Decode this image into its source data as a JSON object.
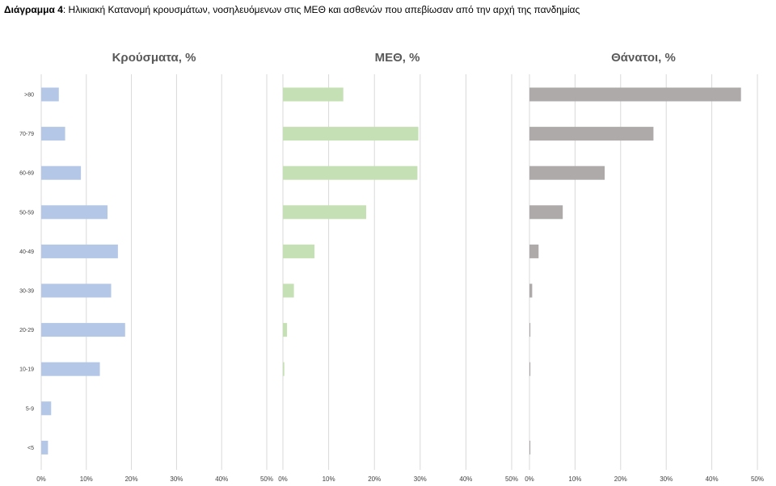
{
  "caption": {
    "prefix": "Διάγραμμα 4",
    "text": ": Ηλικιακή Κατανομή κρουσμάτων, νοσηλευόμενων στις ΜΕΘ και ασθενών που απεβίωσαν από την αρχή της πανδημίας"
  },
  "chart_data": [
    {
      "type": "bar",
      "orientation": "horizontal",
      "title": "Κρούσματα, %",
      "color": "#b4c7e7",
      "categories": [
        ">80",
        "70-79",
        "60-69",
        "50-59",
        "40-49",
        "30-39",
        "20-29",
        "10-19",
        "5-9",
        "<5"
      ],
      "values": [
        3.9,
        5.3,
        8.8,
        14.7,
        17.0,
        15.5,
        18.6,
        13.0,
        2.2,
        1.5
      ],
      "xlim": [
        0,
        50
      ],
      "xticks": [
        "0%",
        "10%",
        "20%",
        "30%",
        "40%",
        "50%"
      ],
      "grid": true
    },
    {
      "type": "bar",
      "orientation": "horizontal",
      "title": "ΜΕΘ, %",
      "color": "#c5e0b4",
      "categories": [
        ">80",
        "70-79",
        "60-69",
        "50-59",
        "40-49",
        "30-39",
        "20-29",
        "10-19",
        "5-9",
        "<5"
      ],
      "values": [
        13.2,
        29.6,
        29.4,
        18.2,
        6.9,
        2.4,
        0.9,
        0.3,
        0,
        0
      ],
      "xlim": [
        0,
        50
      ],
      "xticks": [
        "0%",
        "10%",
        "20%",
        "30%",
        "40%",
        "50%"
      ],
      "grid": true
    },
    {
      "type": "bar",
      "orientation": "horizontal",
      "title": "Θάνατοι, %",
      "color": "#aeaaaa",
      "categories": [
        ">80",
        "70-79",
        "60-69",
        "50-59",
        "40-49",
        "30-39",
        "20-29",
        "10-19",
        "5-9",
        "<5"
      ],
      "values": [
        46.4,
        27.2,
        16.5,
        7.3,
        2.0,
        0.6,
        0.2,
        0.2,
        0,
        0.2
      ],
      "xlim": [
        0,
        50
      ],
      "xticks": [
        "0%",
        "10%",
        "20%",
        "30%",
        "40%",
        "50%"
      ],
      "grid": true
    }
  ]
}
